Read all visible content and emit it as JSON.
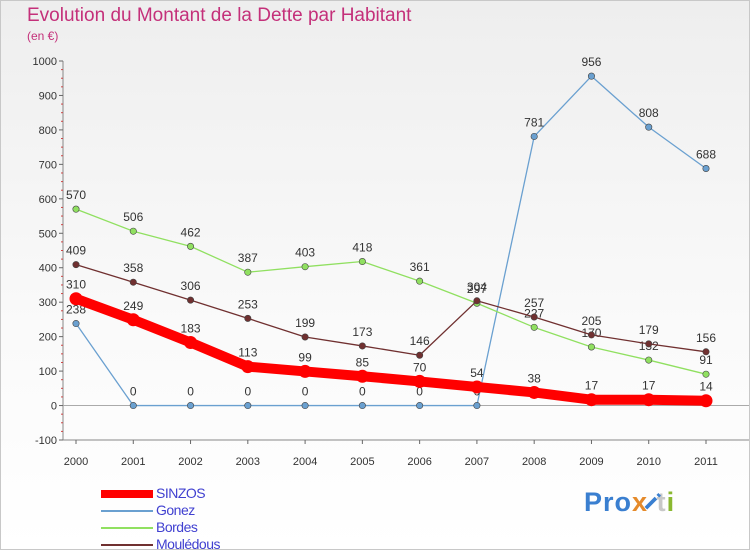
{
  "title": "Evolution du Montant de la Dette par Habitant",
  "unit_label": "(en €)",
  "logo": {
    "text": "Proxiti",
    "letter_colors": [
      "#3a7fd0",
      "#3a7fd0",
      "#3a7fd0",
      "#e58a2a",
      "#3a7fd0",
      "#c8c8c8",
      "#8ab830"
    ]
  },
  "chart_data": {
    "type": "line",
    "title": "Evolution du Montant de la Dette par Habitant",
    "ylabel": "(en €)",
    "xlabel": "",
    "x": [
      "2000",
      "2001",
      "2002",
      "2003",
      "2004",
      "2005",
      "2006",
      "2007",
      "2008",
      "2009",
      "2010",
      "2011"
    ],
    "ylim": [
      -100,
      1000
    ],
    "yticks": [
      "-100",
      "0",
      "100",
      "200",
      "300",
      "400",
      "500",
      "600",
      "700",
      "800",
      "900",
      "1000"
    ],
    "grid": false,
    "legend_position": "bottom-left",
    "series": [
      {
        "name": "SINZOS",
        "color": "#ff0000",
        "emphasis": true,
        "values": [
          310,
          249,
          183,
          113,
          99,
          85,
          70,
          54,
          38,
          17,
          17,
          14
        ]
      },
      {
        "name": "Gonez",
        "color": "#6aa0d0",
        "emphasis": false,
        "values": [
          238,
          0,
          0,
          0,
          0,
          0,
          0,
          0,
          781,
          956,
          808,
          688
        ]
      },
      {
        "name": "Bordes",
        "color": "#90e060",
        "emphasis": false,
        "values": [
          570,
          506,
          462,
          387,
          403,
          418,
          361,
          297,
          227,
          170,
          132,
          91
        ]
      },
      {
        "name": "Moulédous",
        "color": "#703030",
        "emphasis": false,
        "values": [
          409,
          358,
          306,
          253,
          199,
          173,
          146,
          304,
          257,
          205,
          179,
          156
        ]
      }
    ]
  }
}
